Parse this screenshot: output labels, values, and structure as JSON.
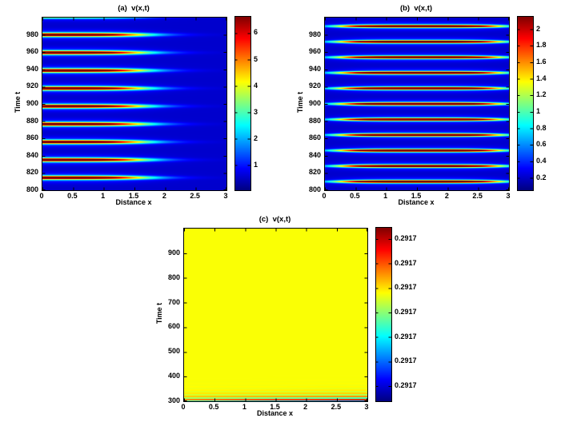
{
  "figure": {
    "background_color": "#ffffff",
    "text_color": "#000000",
    "kind": "matlab-multipanel-figure",
    "panels": [
      "a",
      "b",
      "c"
    ]
  },
  "chart_data": [
    {
      "panel": "a",
      "type": "heatmap",
      "title": "(a)  v(x,t)",
      "xlabel": "Distance x",
      "ylabel": "Time t",
      "colormap": "jet",
      "grid": false,
      "x_range": [
        0,
        3
      ],
      "y_range": [
        800,
        1000
      ],
      "x_ticks": [
        "0",
        "0.5",
        "1",
        "1.5",
        "2",
        "2.5",
        "3"
      ],
      "x_tick_values": [
        0,
        0.5,
        1,
        1.5,
        2,
        2.5,
        3
      ],
      "y_ticks": [
        "800",
        "820",
        "840",
        "860",
        "880",
        "900",
        "920",
        "940",
        "960",
        "980"
      ],
      "y_tick_values": [
        800,
        820,
        840,
        860,
        880,
        900,
        920,
        940,
        960,
        980
      ],
      "colorbar_ticks": [
        "1",
        "2",
        "3",
        "4",
        "5",
        "6"
      ],
      "colorbar_tick_values": [
        1,
        2,
        3,
        4,
        5,
        6
      ],
      "value_range": [
        0.05,
        6.62
      ],
      "background_value": 0.55,
      "pattern": {
        "kind": "stripes-left-decay",
        "description": "Periodic horizontal pulse stripes, dark red at left edge, decaying through yellow/cyan into blue background by x~2.5",
        "amp_max": 6.6,
        "sigma_t": 2.0,
        "halo": 0.16,
        "halo_sigma_t": 5.0,
        "x_profile": {
          "x0": 1.55,
          "width": 0.28
        },
        "stripe_t": [
          814.5,
          835.2,
          855.9,
          876.6,
          897.3,
          918,
          938.7,
          959.4,
          980.1,
          1000.8
        ],
        "stripe_amp": [
          1,
          1,
          1,
          1,
          1,
          1,
          1,
          1,
          1,
          0.45
        ]
      }
    },
    {
      "panel": "b",
      "type": "heatmap",
      "title": "(b)  v(x,t)",
      "xlabel": "Distance x",
      "ylabel": "Time t",
      "colormap": "jet",
      "grid": false,
      "x_range": [
        0,
        3
      ],
      "y_range": [
        800,
        1000
      ],
      "x_ticks": [
        "0",
        "0.5",
        "1",
        "1.5",
        "2",
        "2.5",
        "3"
      ],
      "x_tick_values": [
        0,
        0.5,
        1,
        1.5,
        2,
        2.5,
        3
      ],
      "y_ticks": [
        "800",
        "820",
        "840",
        "860",
        "880",
        "900",
        "920",
        "940",
        "960",
        "980"
      ],
      "y_tick_values": [
        800,
        820,
        840,
        860,
        880,
        900,
        920,
        940,
        960,
        980
      ],
      "colorbar_ticks": [
        "0.2",
        "0.4",
        "0.6",
        "0.8",
        "1",
        "1.2",
        "1.4",
        "1.6",
        "1.8",
        "2"
      ],
      "colorbar_tick_values": [
        0.2,
        0.4,
        0.6,
        0.8,
        1,
        1.2,
        1.4,
        1.6,
        1.8,
        2
      ],
      "value_range": [
        0.05,
        2.15
      ],
      "background_value": 0.21,
      "pattern": {
        "kind": "stripes-center-peak",
        "description": "Periodic full-width horizontal stripes, dark red in the middle, cyan tapered tips at both edges",
        "amp_max": 2.45,
        "sigma_t": 1.5,
        "halo": 0.14,
        "halo_sigma_t": 4.2,
        "x_profile": {
          "center": 1.55,
          "width": 1.35,
          "power": 4
        },
        "stripe_t": [
          810,
          828,
          846,
          864,
          882,
          900,
          918,
          936,
          954,
          972,
          990
        ],
        "stripe_amp": [
          1,
          1,
          1,
          1,
          1,
          1,
          1,
          1,
          1,
          1,
          1
        ]
      }
    },
    {
      "panel": "c",
      "type": "heatmap",
      "title": "(c)  v(x,t)",
      "xlabel": "Distance x",
      "ylabel": "Time t",
      "colormap": "jet",
      "grid": false,
      "x_range": [
        0,
        3
      ],
      "y_range": [
        300,
        1000
      ],
      "x_ticks": [
        "0",
        "0.5",
        "1",
        "1.5",
        "2",
        "2.5",
        "3"
      ],
      "x_tick_values": [
        0,
        0.5,
        1,
        1.5,
        2,
        2.5,
        3
      ],
      "y_ticks": [
        "300",
        "400",
        "500",
        "600",
        "700",
        "800",
        "900"
      ],
      "y_tick_values": [
        300,
        400,
        500,
        600,
        700,
        800,
        900
      ],
      "colorbar_ticks": [
        "0.2917",
        "0.2917",
        "0.2917",
        "0.2917",
        "0.2917",
        "0.2917",
        "0.2917"
      ],
      "colorbar_tick_fractions_from_top": [
        0.065,
        0.206,
        0.347,
        0.489,
        0.63,
        0.771,
        0.912
      ],
      "pattern": {
        "kind": "uniform-bottom-oscillation",
        "description": "Uniform yellow field at v~0.2917 with decaying oscillatory stripes near t=300, stronger toward the right edge",
        "base_p": 0.62,
        "amp": 0.6,
        "period": 13,
        "decay": 15,
        "x_gain_min": 0.45,
        "t0": 300
      }
    }
  ]
}
